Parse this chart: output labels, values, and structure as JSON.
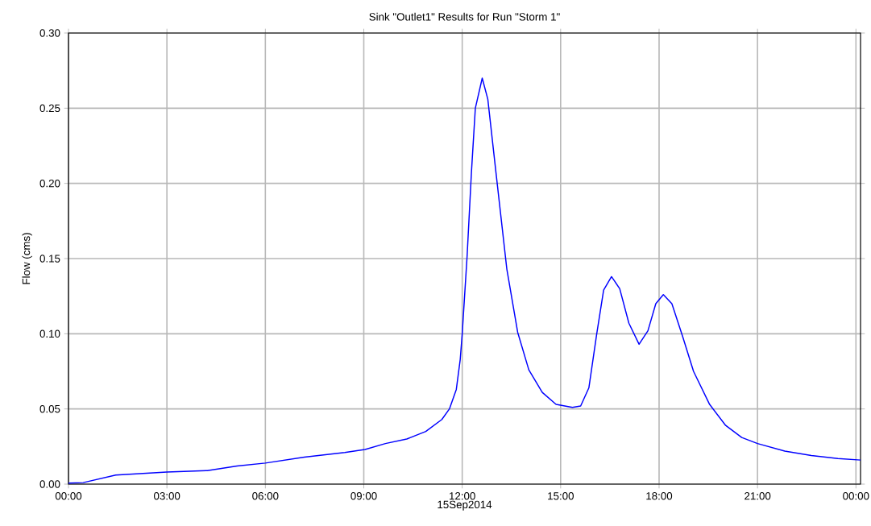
{
  "chart_data": {
    "type": "line",
    "title": "Sink \"Outlet1\" Results for Run \"Storm 1\"",
    "ylabel": "Flow (cms)",
    "xlabel": "15Sep2014",
    "xlim": [
      0,
      24.14
    ],
    "ylim": [
      0,
      0.3
    ],
    "xticks": [
      {
        "value": 0,
        "label": "00:00"
      },
      {
        "value": 3,
        "label": "03:00"
      },
      {
        "value": 6,
        "label": "06:00"
      },
      {
        "value": 9,
        "label": "09:00"
      },
      {
        "value": 12,
        "label": "12:00"
      },
      {
        "value": 15,
        "label": "15:00"
      },
      {
        "value": 18,
        "label": "18:00"
      },
      {
        "value": 21,
        "label": "21:00"
      },
      {
        "value": 24,
        "label": "00:00"
      }
    ],
    "yticks": [
      {
        "value": 0,
        "label": "0.00"
      },
      {
        "value": 0.05,
        "label": "0.05"
      },
      {
        "value": 0.1,
        "label": "0.10"
      },
      {
        "value": 0.15,
        "label": "0.15"
      },
      {
        "value": 0.2,
        "label": "0.20"
      },
      {
        "value": 0.25,
        "label": "0.25"
      },
      {
        "value": 0.3,
        "label": "0.30"
      }
    ],
    "grid": true,
    "marker": "none",
    "line_style": "solid",
    "series": [
      {
        "color": "#0000ff",
        "x": [
          0,
          0.45,
          1.44,
          3.0,
          4.23,
          5.14,
          6.0,
          7.19,
          8.42,
          9.04,
          9.66,
          10.31,
          10.89,
          11.38,
          11.61,
          11.82,
          11.94,
          12.0,
          12.15,
          12.28,
          12.4,
          12.61,
          12.78,
          13.03,
          13.36,
          13.69,
          14.03,
          14.44,
          14.86,
          15.36,
          15.61,
          15.86,
          16.1,
          16.31,
          16.55,
          16.8,
          17.08,
          17.39,
          17.66,
          17.9,
          18.13,
          18.39,
          18.72,
          19.05,
          19.54,
          20.03,
          20.52,
          21.0,
          21.83,
          22.64,
          23.45,
          24.14
        ],
        "values": [
          0.0007,
          0.001,
          0.006,
          0.008,
          0.009,
          0.012,
          0.014,
          0.018,
          0.021,
          0.023,
          0.027,
          0.03,
          0.035,
          0.043,
          0.05,
          0.063,
          0.083,
          0.1,
          0.152,
          0.207,
          0.25,
          0.27,
          0.256,
          0.207,
          0.143,
          0.101,
          0.076,
          0.061,
          0.053,
          0.051,
          0.052,
          0.064,
          0.1,
          0.129,
          0.138,
          0.13,
          0.107,
          0.093,
          0.102,
          0.12,
          0.126,
          0.12,
          0.098,
          0.075,
          0.053,
          0.039,
          0.031,
          0.027,
          0.022,
          0.019,
          0.017,
          0.016
        ]
      }
    ]
  }
}
